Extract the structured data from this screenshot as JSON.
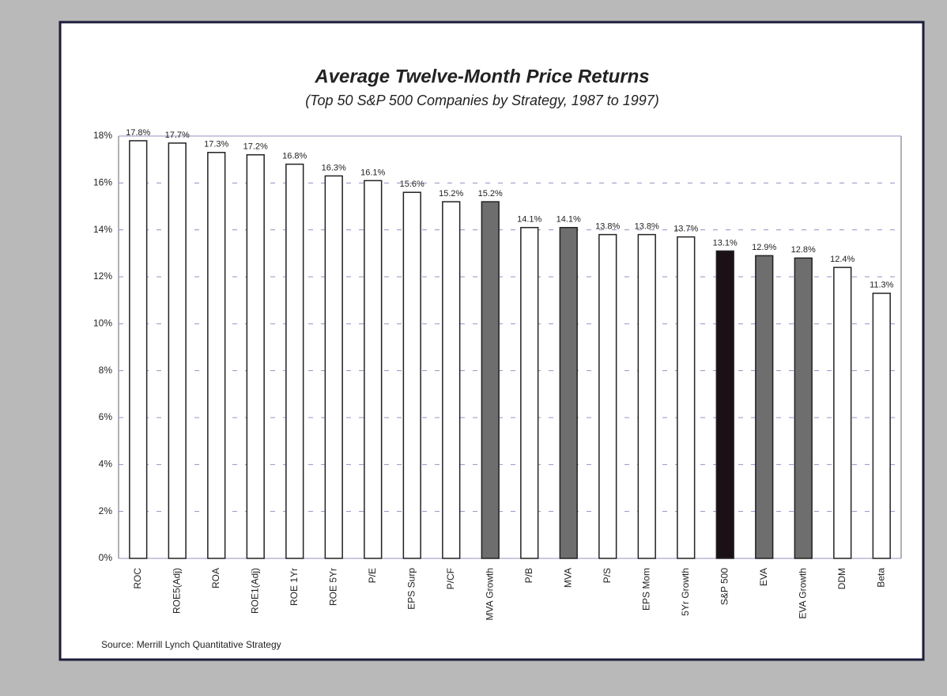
{
  "chart_data": {
    "type": "bar",
    "title": "Average Twelve-Month Price Returns",
    "subtitle": "(Top 50 S&P 500 Companies by Strategy, 1987 to 1997)",
    "source": "Source: Merrill Lynch Quantitative Strategy",
    "categories": [
      "ROC",
      "ROE5(Adj)",
      "ROA",
      "ROE1(Adj)",
      "ROE 1Yr",
      "ROE 5Yr",
      "P/E",
      "EPS Surp",
      "P/CF",
      "MVA Growth",
      "P/B",
      "MVA",
      "P/S",
      "EPS Mom",
      "5Yr Growth",
      "S&P 500",
      "EVA",
      "EVA Growth",
      "DDM",
      "Beta"
    ],
    "values": [
      17.8,
      17.7,
      17.3,
      17.2,
      16.8,
      16.3,
      16.1,
      15.6,
      15.2,
      15.2,
      14.1,
      14.1,
      13.8,
      13.8,
      13.7,
      13.1,
      12.9,
      12.8,
      12.4,
      11.3
    ],
    "value_labels": [
      "17.8%",
      "17.7%",
      "17.3%",
      "17.2%",
      "16.8%",
      "16.3%",
      "16.1%",
      "15.6%",
      "15.2%",
      "15.2%",
      "14.1%",
      "14.1%",
      "13.8%",
      "13.8%",
      "13.7%",
      "13.1%",
      "12.9%",
      "12.8%",
      "12.4%",
      "11.3%"
    ],
    "colors": [
      "#ffffff",
      "#ffffff",
      "#ffffff",
      "#ffffff",
      "#ffffff",
      "#ffffff",
      "#ffffff",
      "#ffffff",
      "#ffffff",
      "#6e6e6e",
      "#ffffff",
      "#6e6e6e",
      "#ffffff",
      "#ffffff",
      "#ffffff",
      "#1a1016",
      "#6e6e6e",
      "#6e6e6e",
      "#ffffff",
      "#ffffff"
    ],
    "ylim": [
      0,
      18
    ],
    "yticks": [
      {
        "value": 0,
        "label": "0%"
      },
      {
        "value": 2,
        "label": "2%"
      },
      {
        "value": 4,
        "label": "4%"
      },
      {
        "value": 6,
        "label": "6%"
      },
      {
        "value": 8,
        "label": "8%"
      },
      {
        "value": 10,
        "label": "10%"
      },
      {
        "value": 12,
        "label": "12%"
      },
      {
        "value": 14,
        "label": "14%"
      },
      {
        "value": 16,
        "label": "16%"
      },
      {
        "value": 18,
        "label": "18%"
      }
    ],
    "grid": true
  }
}
